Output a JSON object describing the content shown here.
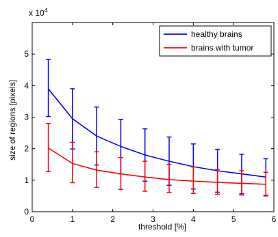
{
  "chart_data": {
    "type": "line",
    "title": "",
    "xlabel": "threshold [%]",
    "ylabel": "size of regions [pixels]",
    "y_multiplier_label": "x 10",
    "y_multiplier_exponent": "4",
    "xlim": [
      0,
      6
    ],
    "ylim": [
      0,
      6
    ],
    "x_ticks": [
      "0",
      "1",
      "2",
      "3",
      "4",
      "5",
      "6"
    ],
    "y_ticks": [
      "0",
      "1",
      "2",
      "3",
      "4",
      "5"
    ],
    "grid": false,
    "legend_position": "top-right",
    "x": [
      0.4,
      1.0,
      1.6,
      2.2,
      2.8,
      3.4,
      4.0,
      4.6,
      5.2,
      5.8
    ],
    "series": [
      {
        "name": "healthy brains",
        "color": "#0000ff",
        "values": [
          3.9,
          2.95,
          2.4,
          2.07,
          1.8,
          1.6,
          1.43,
          1.3,
          1.2,
          1.1
        ],
        "upper": [
          4.83,
          3.9,
          3.32,
          2.93,
          2.63,
          2.37,
          2.15,
          1.98,
          1.82,
          1.68
        ],
        "lower": [
          3.02,
          1.99,
          1.48,
          1.2,
          0.97,
          0.84,
          0.72,
          0.62,
          0.57,
          0.52
        ]
      },
      {
        "name": "brains with tumor",
        "color": "#ff0000",
        "values": [
          2.02,
          1.53,
          1.32,
          1.2,
          1.1,
          1.02,
          0.97,
          0.93,
          0.9,
          0.87
        ],
        "upper": [
          2.8,
          2.2,
          1.9,
          1.72,
          1.6,
          1.5,
          1.42,
          1.34,
          1.3,
          1.25
        ],
        "lower": [
          1.27,
          0.92,
          0.77,
          0.71,
          0.65,
          0.61,
          0.58,
          0.55,
          0.53,
          0.5
        ]
      }
    ]
  }
}
